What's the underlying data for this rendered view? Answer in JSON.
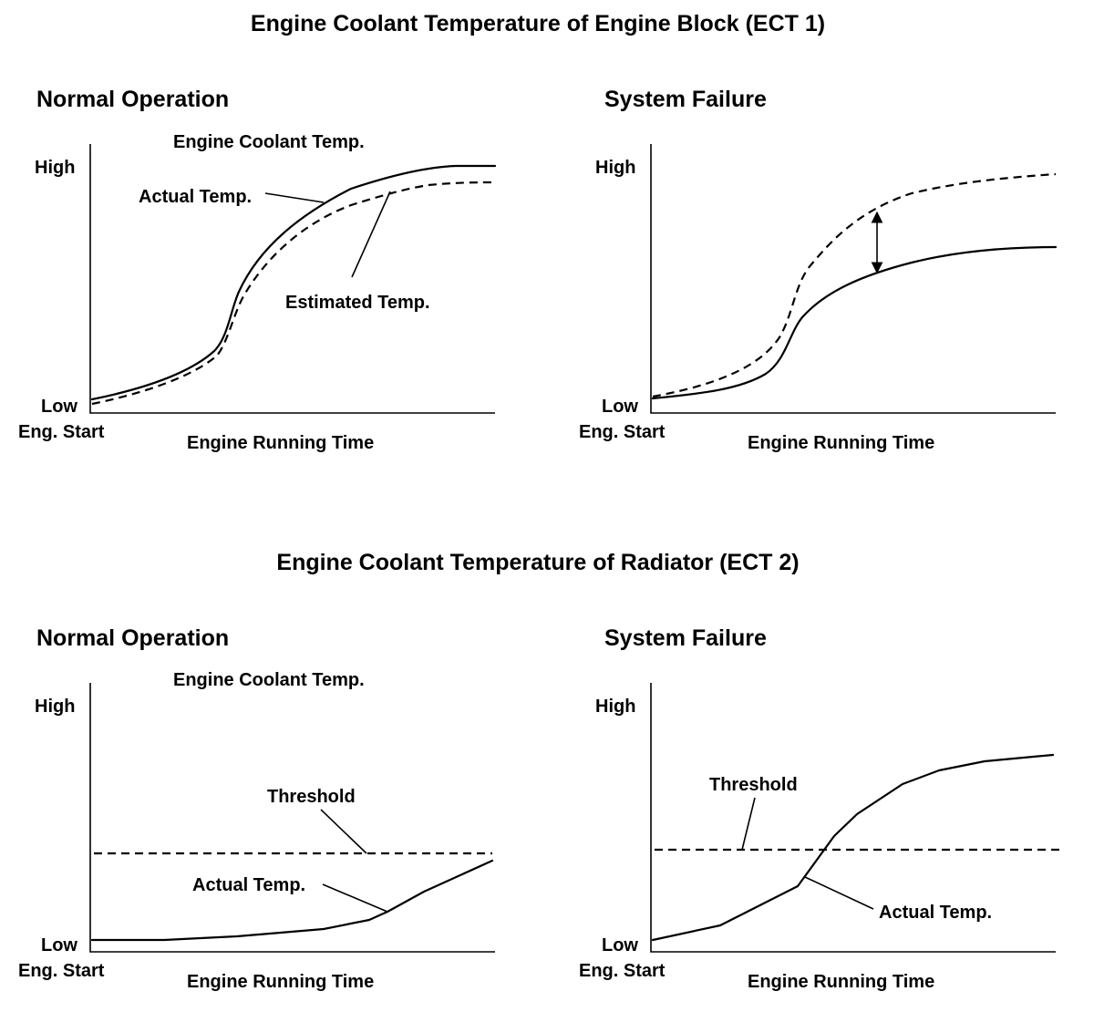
{
  "sections": [
    {
      "title": "Engine Coolant Temperature of Engine Block (ECT 1)",
      "normal": {
        "title": "Normal Operation",
        "y_axis_title": "Engine Coolant Temp.",
        "y_high": "High",
        "y_low": "Low",
        "x_start": "Eng. Start",
        "x_axis_title": "Engine Running Time",
        "actual_label": "Actual Temp.",
        "estimated_label": "Estimated Temp."
      },
      "failure": {
        "title": "System Failure",
        "y_high": "High",
        "y_low": "Low",
        "x_start": "Eng. Start",
        "x_axis_title": "Engine Running Time"
      }
    },
    {
      "title": "Engine Coolant Temperature of Radiator (ECT 2)",
      "normal": {
        "title": "Normal Operation",
        "y_axis_title": "Engine Coolant Temp.",
        "y_high": "High",
        "y_low": "Low",
        "x_start": "Eng. Start",
        "x_axis_title": "Engine Running Time",
        "threshold_label": "Threshold",
        "actual_label": "Actual Temp."
      },
      "failure": {
        "title": "System Failure",
        "y_high": "High",
        "y_low": "Low",
        "x_start": "Eng. Start",
        "x_axis_title": "Engine Running Time",
        "threshold_label": "Threshold",
        "actual_label": "Actual Temp."
      }
    }
  ]
}
